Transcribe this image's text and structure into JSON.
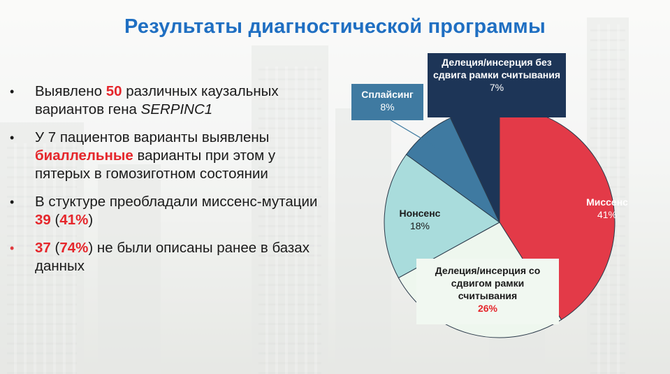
{
  "title": "Результаты диагностической программы",
  "bullets": [
    {
      "pre": "Выявлено ",
      "num": "50",
      "post": " различных каузальных вариантов гена ",
      "gene": "SERPINC1"
    },
    {
      "pre": " У 7 пациентов варианты выявлены ",
      "hl": "биаллельные",
      "post": " варианты при этом у пятерых в гомозиготном состоянии"
    },
    {
      "pre": "В стуктуре преобладали миссенс-мутации ",
      "num": "39",
      "mid": " (",
      "pct": "41%",
      "post": ")"
    },
    {
      "num": "37",
      "mid": " (",
      "pct": "74%",
      "post": ") не были описаны ранее в базах данных"
    }
  ],
  "colors": {
    "missense": "#e33a48",
    "frameshift": "#eef7ee",
    "nonsense": "#a9dcdc",
    "splicing": "#3f7aa1",
    "inframe": "#1d3557"
  },
  "chart_data": {
    "type": "pie",
    "start_angle_deg": 0,
    "direction": "clockwise",
    "slices": [
      {
        "key": "missense",
        "label": "Миссенс",
        "value": 41,
        "value_label": "41%"
      },
      {
        "key": "frameshift",
        "label": "Делеция/инсерция со сдвигом рамки считывания",
        "value": 26,
        "value_label": "26%"
      },
      {
        "key": "nonsense",
        "label": "Нонсенс",
        "value": 18,
        "value_label": "18%"
      },
      {
        "key": "splicing",
        "label": "Сплайсинг",
        "value": 8,
        "value_label": "8%"
      },
      {
        "key": "inframe",
        "label": "Делеция/инсерция без сдвига рамки считывания",
        "value": 7,
        "value_label": "7%"
      }
    ]
  }
}
